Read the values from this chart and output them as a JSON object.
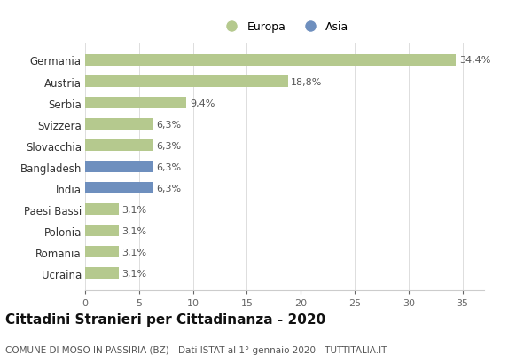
{
  "categories": [
    "Germania",
    "Austria",
    "Serbia",
    "Svizzera",
    "Slovacchia",
    "Bangladesh",
    "India",
    "Paesi Bassi",
    "Polonia",
    "Romania",
    "Ucraina"
  ],
  "values": [
    34.4,
    18.8,
    9.4,
    6.3,
    6.3,
    6.3,
    6.3,
    3.1,
    3.1,
    3.1,
    3.1
  ],
  "labels": [
    "34,4%",
    "18,8%",
    "9,4%",
    "6,3%",
    "6,3%",
    "6,3%",
    "6,3%",
    "3,1%",
    "3,1%",
    "3,1%",
    "3,1%"
  ],
  "colors": [
    "#b5c98e",
    "#b5c98e",
    "#b5c98e",
    "#b5c98e",
    "#b5c98e",
    "#6e8fbe",
    "#6e8fbe",
    "#b5c98e",
    "#b5c98e",
    "#b5c98e",
    "#b5c98e"
  ],
  "europa_color": "#b5c98e",
  "asia_color": "#6e8fbe",
  "legend_labels": [
    "Europa",
    "Asia"
  ],
  "title": "Cittadini Stranieri per Cittadinanza - 2020",
  "subtitle": "COMUNE DI MOSO IN PASSIRIA (BZ) - Dati ISTAT al 1° gennaio 2020 - TUTTITALIA.IT",
  "xlim": [
    0,
    37
  ],
  "xticks": [
    0,
    5,
    10,
    15,
    20,
    25,
    30,
    35
  ],
  "background_color": "#ffffff",
  "bar_height": 0.55,
  "label_fontsize": 8,
  "ytick_fontsize": 8.5,
  "xtick_fontsize": 8,
  "title_fontsize": 11,
  "subtitle_fontsize": 7.5
}
